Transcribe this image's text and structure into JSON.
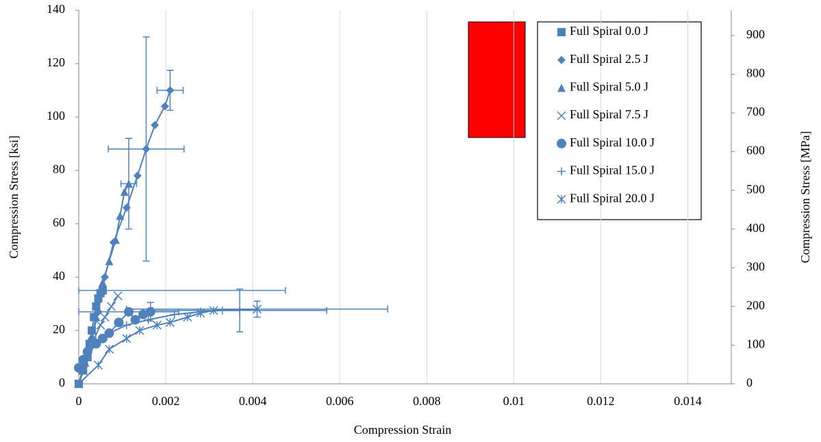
{
  "chart_data": {
    "type": "scatter-line",
    "x_label": "Compression Strain",
    "y_label": "Compression Stress [ksi]",
    "y2_label": "Compression Stress [MPa]",
    "xlim": [
      0,
      0.015
    ],
    "xticks": [
      0,
      0.002,
      0.004,
      0.006,
      0.008,
      0.01,
      0.012,
      0.014
    ],
    "ylim": [
      0,
      140
    ],
    "yticks": [
      0,
      20,
      40,
      60,
      80,
      100,
      120,
      140
    ],
    "y2lim": [
      0,
      965.3
    ],
    "y2ticks": [
      0,
      100,
      200,
      300,
      400,
      500,
      600,
      700,
      800,
      900
    ],
    "grid": "x",
    "legend": "upper right",
    "series": [
      {
        "name": "Full Spiral 0.0 J",
        "color": "#4f81bd",
        "marker": "square",
        "x": [
          0,
          0.0001,
          0.0002,
          0.00025,
          0.0003,
          0.00035,
          0.0004,
          0.00045,
          0.0005,
          0.00055
        ],
        "values": [
          0,
          5,
          10,
          15,
          20,
          25,
          29,
          32,
          34,
          35
        ],
        "x_err": [
          null,
          null,
          null,
          null,
          null,
          null,
          null,
          null,
          null,
          0.0042
        ],
        "y_err": [
          null,
          null,
          null,
          null,
          null,
          null,
          null,
          null,
          null,
          null
        ]
      },
      {
        "name": "Full Spiral 2.5 J",
        "color": "#4f81bd",
        "marker": "diamond",
        "x": [
          0,
          0.0001,
          0.0002,
          0.0003,
          0.00045,
          0.0006,
          0.0008,
          0.0011,
          0.00135,
          0.00155,
          0.00175,
          0.00198,
          0.0021
        ],
        "values": [
          0,
          6,
          12,
          17,
          27,
          40,
          53,
          66,
          78,
          88,
          97,
          104,
          110
        ],
        "x_err": [
          null,
          null,
          null,
          null,
          null,
          null,
          null,
          null,
          null,
          0.00087,
          null,
          null,
          0.0003
        ],
        "y_err": [
          null,
          null,
          null,
          null,
          null,
          null,
          null,
          null,
          null,
          42,
          null,
          null,
          7.5
        ]
      },
      {
        "name": "Full Spiral 5.0 J",
        "color": "#4f81bd",
        "marker": "triangle",
        "x": [
          0,
          0.00015,
          0.0003,
          0.0004,
          0.00055,
          0.0007,
          0.00085,
          0.00095,
          0.00105,
          0.00115
        ],
        "values": [
          0,
          8,
          18,
          25,
          38,
          46,
          54,
          63,
          72,
          75
        ],
        "x_err": [
          null,
          null,
          null,
          null,
          null,
          null,
          null,
          null,
          null,
          0.00018
        ],
        "y_err": [
          null,
          null,
          null,
          null,
          null,
          null,
          null,
          null,
          null,
          17
        ]
      },
      {
        "name": "Full Spiral 7.5 J",
        "color": "#4f81bd",
        "marker": "x",
        "x": [
          0,
          0.0001,
          0.0002,
          0.0003,
          0.0005,
          0.0006,
          0.00075,
          0.0009
        ],
        "values": [
          0,
          5,
          11,
          15,
          22,
          25,
          29,
          33
        ],
        "x_err": [
          null,
          null,
          null,
          null,
          null,
          null,
          null,
          null
        ],
        "y_err": [
          null,
          null,
          null,
          null,
          null,
          null,
          null,
          null
        ]
      },
      {
        "name": "Full Spiral 10.0 J",
        "color": "#4f81bd",
        "marker": "circle",
        "x": [
          0,
          0.0001,
          0.0002,
          0.0004,
          0.00055,
          0.0007,
          0.00092,
          0.00115,
          0.0013,
          0.00148,
          0.00165
        ],
        "values": [
          6,
          9,
          12,
          15,
          17,
          19,
          23,
          27,
          24,
          26,
          27
        ],
        "x_err": [
          null,
          null,
          null,
          null,
          null,
          null,
          null,
          0.00115,
          null,
          null,
          null
        ],
        "y_err": [
          null,
          null,
          null,
          null,
          null,
          null,
          null,
          null,
          null,
          null,
          3.5
        ]
      },
      {
        "name": "Full Spiral 15.0 J",
        "color": "#4f81bd",
        "marker": "plus",
        "x": [
          0,
          0.0002,
          0.0004,
          0.0007,
          0.0011,
          0.0016,
          0.0022,
          0.0028,
          0.0033,
          0.0037
        ],
        "values": [
          0,
          9,
          16,
          19,
          22,
          24,
          26,
          27,
          27.5,
          27.5
        ],
        "x_err": [
          null,
          null,
          null,
          null,
          null,
          null,
          null,
          null,
          null,
          0.002
        ],
        "y_err": [
          null,
          null,
          null,
          null,
          null,
          null,
          null,
          null,
          null,
          8
        ]
      },
      {
        "name": "Full Spiral 20.0 J",
        "color": "#4f81bd",
        "marker": "star",
        "x": [
          0,
          0.00045,
          0.0007,
          0.0011,
          0.0014,
          0.0018,
          0.0021,
          0.0025,
          0.0028,
          0.0031,
          0.0041
        ],
        "values": [
          0,
          7,
          13,
          17,
          20,
          22,
          23,
          25,
          26.5,
          27.5,
          28
        ],
        "x_err": [
          null,
          null,
          null,
          null,
          null,
          null,
          null,
          null,
          null,
          null,
          0.003
        ],
        "y_err": [
          null,
          null,
          null,
          null,
          null,
          null,
          null,
          null,
          null,
          null,
          3
        ]
      }
    ]
  }
}
